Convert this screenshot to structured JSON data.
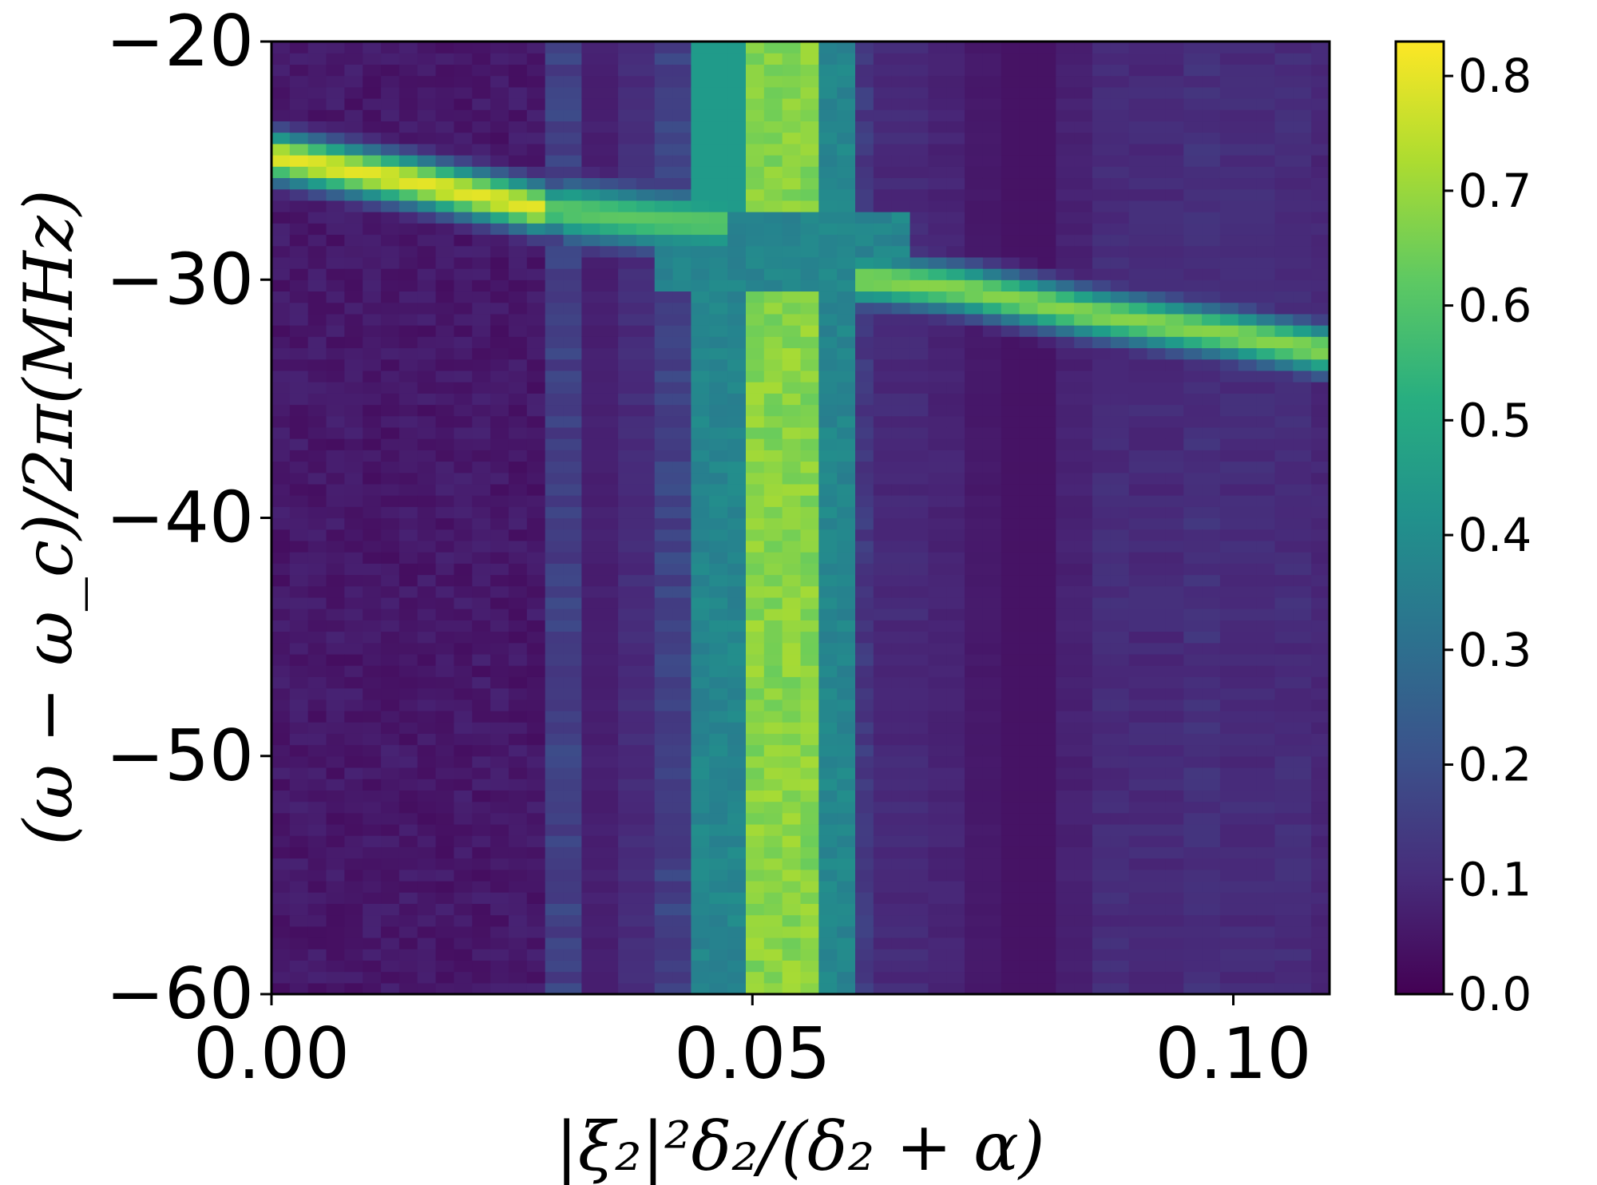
{
  "chart_data": {
    "type": "heatmap",
    "title": "",
    "xlabel": "|ξ₂|²δ₂/(δ₂ + α)",
    "ylabel": "(ω − ω_c)/2π(MHz)",
    "xlim": [
      0.0,
      0.11
    ],
    "ylim": [
      -60,
      -20
    ],
    "x_ticks": [
      0.0,
      0.05,
      0.1
    ],
    "x_tick_labels": [
      "0.00",
      "0.05",
      "0.10"
    ],
    "y_ticks": [
      -20,
      -30,
      -40,
      -50,
      -60
    ],
    "y_tick_labels": [
      "−20",
      "−30",
      "−40",
      "−50",
      "−60"
    ],
    "colormap": "viridis",
    "colorbar": {
      "vmin": 0.0,
      "vmax": 0.83,
      "ticks": [
        0.0,
        0.1,
        0.2,
        0.3,
        0.4,
        0.5,
        0.6,
        0.7,
        0.8
      ],
      "tick_labels": [
        "0.0",
        "0.1",
        "0.2",
        "0.3",
        "0.4",
        "0.5",
        "0.6",
        "0.7",
        "0.8"
      ],
      "placement": "right"
    },
    "features": {
      "upper_branch": {
        "x": [
          0.0,
          0.015,
          0.028,
          0.04,
          0.046
        ],
        "y": [
          -24.8,
          -25.9,
          -27.0,
          -27.5,
          -27.6
        ],
        "value": 0.78
      },
      "lower_branch": {
        "x": [
          0.063,
          0.072,
          0.085,
          0.1,
          0.11
        ],
        "y": [
          -30.0,
          -30.4,
          -31.4,
          -32.3,
          -33.0
        ],
        "value": 0.7
      },
      "vertical_band": {
        "x_center": 0.053,
        "x_halfwidth": 0.004,
        "value": 0.68
      },
      "anticrossing_region": {
        "x": [
          0.046,
          0.063
        ],
        "y": [
          -30.5,
          -27.0
        ],
        "value": 0.35
      }
    }
  }
}
